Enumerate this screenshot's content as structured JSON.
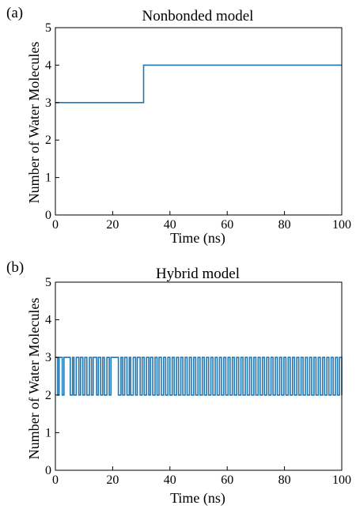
{
  "colors": {
    "series": "#1f77b4",
    "axis": "#000000"
  },
  "chart_data": [
    {
      "type": "line",
      "step": true,
      "panel_label": "(a)",
      "title": "Nonbonded model",
      "xlabel": "Time (ns)",
      "ylabel": "Number of Water Molecules",
      "xlim": [
        0,
        100
      ],
      "ylim": [
        0,
        5
      ],
      "xticks": [
        "0",
        "20",
        "40",
        "60",
        "80",
        "100"
      ],
      "yticks": [
        "0",
        "1",
        "2",
        "3",
        "4",
        "5"
      ],
      "series": [
        {
          "x": [
            0,
            30.8,
            30.8,
            100
          ],
          "y": [
            3,
            3,
            4,
            4
          ]
        }
      ]
    },
    {
      "type": "line",
      "step": true,
      "panel_label": "(b)",
      "title": "Hybrid model",
      "xlabel": "Time (ns)",
      "ylabel": "Number of Water Molecules",
      "xlim": [
        0,
        100
      ],
      "ylim": [
        0,
        5
      ],
      "xticks": [
        "0",
        "20",
        "40",
        "60",
        "80",
        "100"
      ],
      "yticks": [
        "0",
        "1",
        "2",
        "3",
        "4",
        "5"
      ],
      "series": [
        {
          "x": [
            0,
            0.8,
            1.3,
            2.4,
            3.0,
            5.2,
            6.0,
            6.5,
            7.3,
            8.2,
            8.8,
            9.6,
            10.3,
            11.0,
            11.9,
            12.6,
            13.2,
            14.4,
            15.0,
            15.8,
            16.5,
            17.1,
            18.0,
            18.8,
            19.4,
            22.0,
            22.9,
            23.5,
            24.2,
            25.0,
            25.8,
            26.3,
            27.2,
            28.0,
            28.6,
            29.6,
            30.3,
            31.0,
            31.8,
            32.6,
            33.2,
            34.0,
            34.8,
            35.5,
            36.2,
            37.0,
            37.8,
            38.5,
            39.3,
            40.0,
            40.8,
            41.5,
            42.3,
            43.0,
            43.8,
            44.5,
            45.3,
            46.0,
            46.8,
            47.5,
            48.3,
            49.0,
            49.8,
            50.5,
            51.3,
            52.0,
            52.8,
            53.5,
            54.3,
            55.0,
            55.8,
            56.5,
            57.3,
            58.0,
            58.8,
            59.5,
            60.3,
            61.0,
            61.8,
            62.5,
            63.3,
            64.0,
            64.8,
            65.5,
            66.3,
            67.0,
            67.8,
            68.5,
            69.3,
            70.0,
            70.8,
            71.5,
            72.3,
            73.0,
            73.8,
            74.5,
            75.3,
            76.0,
            76.8,
            77.5,
            78.3,
            79.0,
            79.8,
            80.5,
            81.3,
            82.0,
            82.8,
            83.5,
            84.3,
            85.0,
            85.8,
            86.5,
            87.3,
            88.0,
            88.8,
            89.5,
            90.3,
            91.0,
            91.8,
            92.5,
            93.3,
            94.0,
            94.8,
            95.5,
            96.3,
            97.0,
            97.8,
            98.5,
            99.2,
            100
          ],
          "y": [
            3,
            2,
            3,
            2,
            3,
            2,
            3,
            2,
            3,
            2,
            3,
            2,
            3,
            2,
            3,
            2,
            3,
            2,
            3,
            2,
            3,
            2,
            3,
            2,
            3,
            2,
            3,
            2,
            3,
            2,
            3,
            2,
            3,
            2,
            3,
            2,
            3,
            2,
            3,
            2,
            3,
            2,
            3,
            2,
            3,
            2,
            3,
            2,
            3,
            2,
            3,
            2,
            3,
            2,
            3,
            2,
            3,
            2,
            3,
            2,
            3,
            2,
            3,
            2,
            3,
            2,
            3,
            2,
            3,
            2,
            3,
            2,
            3,
            2,
            3,
            2,
            3,
            2,
            3,
            2,
            3,
            2,
            3,
            2,
            3,
            2,
            3,
            2,
            3,
            2,
            3,
            2,
            3,
            2,
            3,
            2,
            3,
            2,
            3,
            2,
            3,
            2,
            3,
            2,
            3,
            2,
            3,
            2,
            3,
            2,
            3,
            2,
            3,
            2,
            3,
            2,
            3,
            2,
            3,
            2,
            3,
            2,
            3,
            2,
            3,
            2,
            3,
            2,
            3,
            2
          ]
        }
      ]
    }
  ]
}
